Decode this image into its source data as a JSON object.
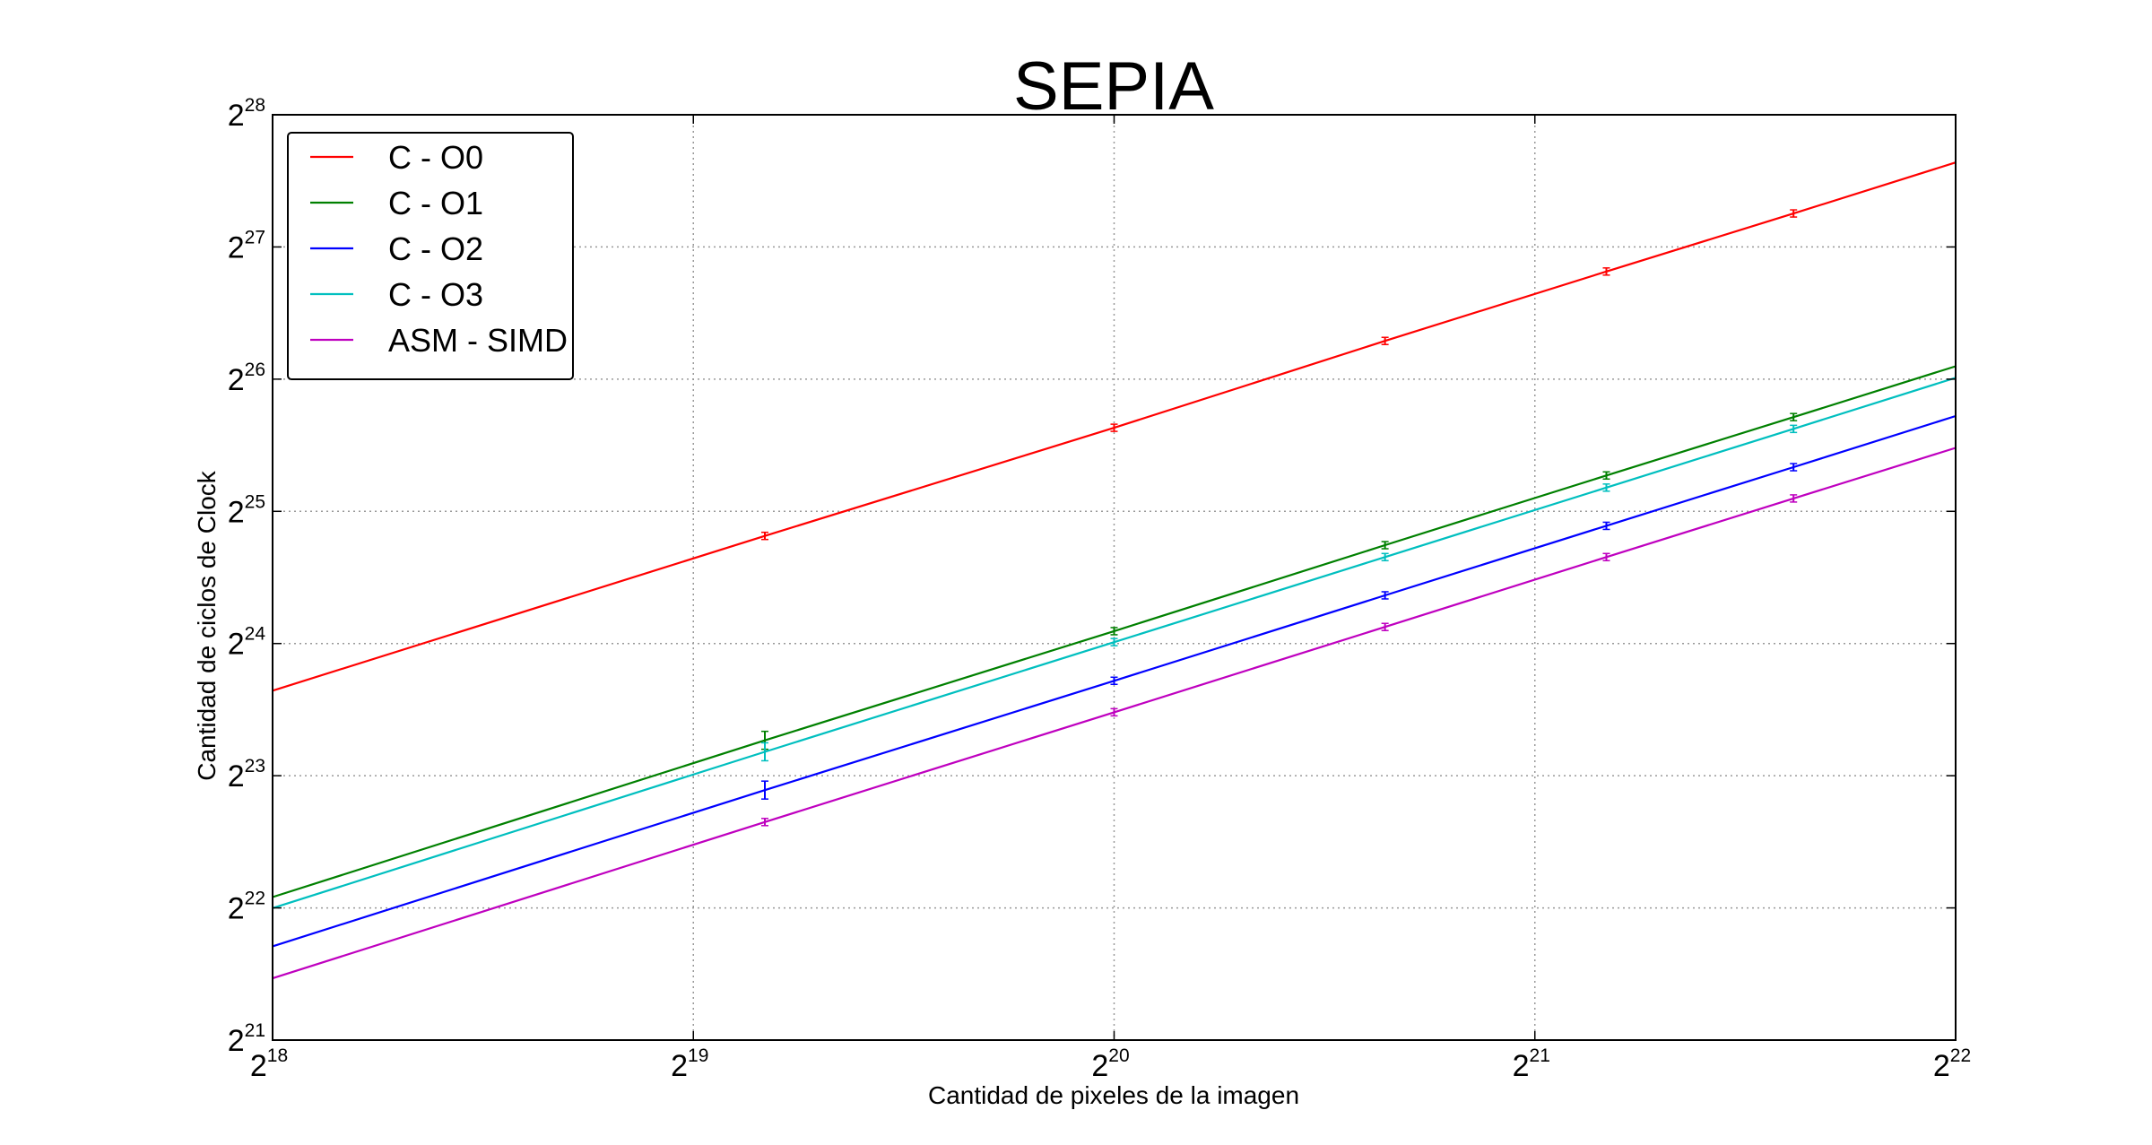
{
  "chart_data": {
    "type": "line",
    "title": "SEPIA",
    "xlabel": "Cantidad de pixeles de la imagen",
    "ylabel": "Cantidad de ciclos de Clock",
    "x_scale": "log2",
    "y_scale": "log2",
    "xlim": [
      262144,
      4194304
    ],
    "ylim": [
      2097152,
      268435456
    ],
    "x_ticks": [
      {
        "value": 262144,
        "base": "2",
        "exp": "18"
      },
      {
        "value": 524288,
        "base": "2",
        "exp": "19"
      },
      {
        "value": 1048576,
        "base": "2",
        "exp": "20"
      },
      {
        "value": 2097152,
        "base": "2",
        "exp": "21"
      },
      {
        "value": 4194304,
        "base": "2",
        "exp": "22"
      }
    ],
    "y_ticks": [
      {
        "value": 2097152,
        "base": "2",
        "exp": "21"
      },
      {
        "value": 4194304,
        "base": "2",
        "exp": "22"
      },
      {
        "value": 8388608,
        "base": "2",
        "exp": "23"
      },
      {
        "value": 16777216,
        "base": "2",
        "exp": "24"
      },
      {
        "value": 33554432,
        "base": "2",
        "exp": "25"
      },
      {
        "value": 67108864,
        "base": "2",
        "exp": "26"
      },
      {
        "value": 134217728,
        "base": "2",
        "exp": "27"
      },
      {
        "value": 268435456,
        "base": "2",
        "exp": "28"
      }
    ],
    "grid": true,
    "legend_position": "top-left",
    "x": [
      262144,
      589824,
      1048576,
      1638400,
      2359296,
      3211264,
      4194304
    ],
    "series": [
      {
        "name": "C - O0",
        "color": "#ff0000",
        "values": [
          13100000,
          29500000,
          52000000,
          82000000,
          118000000,
          160000000,
          209000000
        ]
      },
      {
        "name": "C - O1",
        "color": "#008000",
        "values": [
          4440000,
          10100000,
          17900000,
          28100000,
          40500000,
          55000000,
          71800000
        ]
      },
      {
        "name": "C - O2",
        "color": "#0000ff",
        "values": [
          3430000,
          7780000,
          13800000,
          21600000,
          31100000,
          42300000,
          55300000
        ]
      },
      {
        "name": "C - O3",
        "color": "#00bfbf",
        "values": [
          4190000,
          9510000,
          16900000,
          26400000,
          38000000,
          51700000,
          67600000
        ]
      },
      {
        "name": "ASM - SIMD",
        "color": "#bf00bf",
        "values": [
          2900000,
          6580000,
          11700000,
          18300000,
          26400000,
          35900000,
          46800000
        ]
      }
    ]
  }
}
